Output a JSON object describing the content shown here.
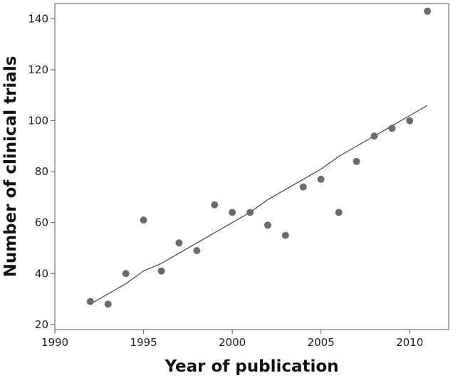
{
  "chart_data": {
    "type": "scatter",
    "title": "",
    "xlabel": "Year of publication",
    "ylabel": "Number of clinical trials",
    "xlim": [
      1990,
      2012.2
    ],
    "ylim": [
      18,
      146
    ],
    "x_ticks": [
      1990,
      1995,
      2000,
      2005,
      2010
    ],
    "y_ticks": [
      20,
      40,
      60,
      80,
      100,
      120,
      140
    ],
    "grid": false,
    "legend": "none",
    "point_color": "#6b6b6b",
    "line_color": "#444444",
    "series": [
      {
        "x": [
          1992,
          1993,
          1994,
          1995,
          1996,
          1997,
          1998,
          1999,
          2000,
          2001,
          2002,
          2003,
          2004,
          2005,
          2006,
          2007,
          2008,
          2009,
          2010,
          2011
        ],
        "y": [
          29,
          28,
          40,
          61,
          41,
          52,
          49,
          67,
          64,
          64,
          59,
          55,
          74,
          77,
          64,
          84,
          94,
          97,
          100,
          143
        ]
      }
    ],
    "trend_line": {
      "x": [
        1992,
        1993,
        1994,
        1995,
        1996,
        1997,
        1998,
        1999,
        2000,
        2001,
        2002,
        2003,
        2004,
        2005,
        2006,
        2007,
        2008,
        2009,
        2010,
        2011
      ],
      "y": [
        28,
        32,
        36,
        41,
        44,
        48,
        52,
        56,
        60,
        64,
        69,
        73,
        77,
        81,
        86,
        90,
        94,
        98,
        102,
        106
      ]
    }
  }
}
